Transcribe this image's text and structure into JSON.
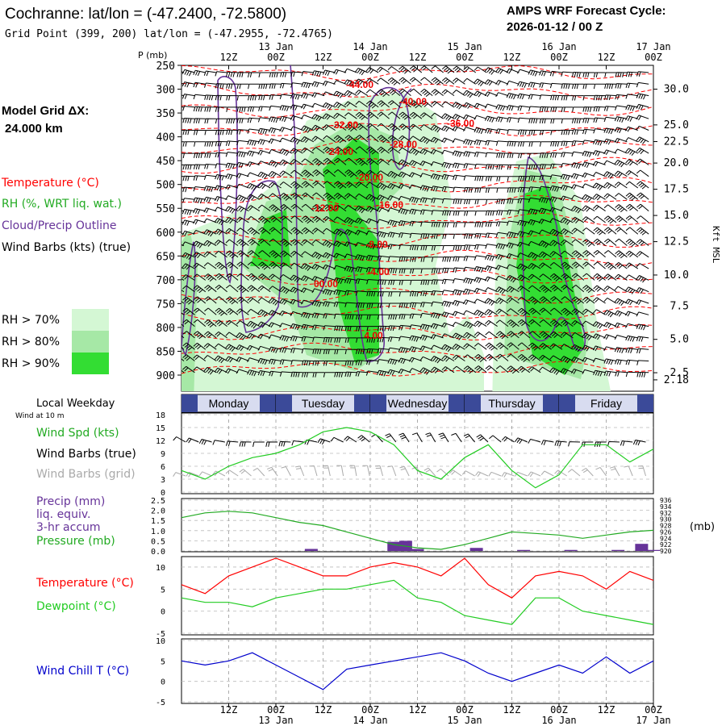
{
  "header": {
    "title": "Cochranne:  lat/lon = (-47.2400, -72.5800)",
    "grid_point": "Grid Point (399, 200) lat/lon = (-47.2955, -72.4765)",
    "forecast_label": "AMPS WRF Forecast Cycle:",
    "forecast_cycle": "2026-01-12 / 00  Z"
  },
  "colors": {
    "temperature": "#ff0000",
    "rh": "#22aa22",
    "cloud": "#663399",
    "wind": "#000000",
    "grid_barb": "#aaaaaa",
    "wind_chill": "#0000cc",
    "dewpoint": "#22cc22",
    "precip": "#663399"
  },
  "time_axis": {
    "top_hours": [
      "12Z",
      "00Z",
      "12Z",
      "00Z",
      "12Z",
      "00Z",
      "12Z",
      "00Z",
      "12Z",
      "00Z"
    ],
    "top_dates": [
      "13 Jan",
      "14 Jan",
      "15 Jan",
      "16 Jan",
      "17 Jan"
    ],
    "bottom_hours": [
      "12Z",
      "00Z",
      "12Z",
      "00Z",
      "12Z",
      "00Z",
      "12Z",
      "00Z",
      "12Z",
      "00Z"
    ],
    "bottom_dates": [
      "13 Jan",
      "14 Jan",
      "15 Jan",
      "16 Jan",
      "17 Jan"
    ]
  },
  "weekday_label": "Local Weekday",
  "wind_10m_label": "Wind at 10 m",
  "weekdays": [
    "Monday",
    "Tuesday",
    "Wednesday",
    "Thursday",
    "Friday"
  ],
  "pressure_axis": {
    "label": "P (mb)",
    "levels": [
      250,
      300,
      350,
      400,
      450,
      500,
      550,
      600,
      650,
      700,
      750,
      800,
      850,
      900
    ]
  },
  "height_axis": {
    "label": "Kft MSL",
    "ticks": [
      "30.0",
      "25.0",
      "22.5",
      "20.0",
      "17.5",
      "15.0",
      "12.5",
      "10.0",
      "7.5",
      "5.0",
      "2.5",
      "2.18"
    ]
  },
  "model_grid": {
    "label": "Model Grid ΔX:",
    "value": "24.000 km"
  },
  "legend": {
    "temperature": "Temperature (°C)",
    "rh": "RH (%, WRT liq. wat.)",
    "cloud": "Cloud/Precip Outline",
    "wind": "Wind Barbs (kts) (true)",
    "rh70": "RH > 70%",
    "rh80": "RH > 80%",
    "rh90": "RH > 90%",
    "rh70_color": "#d4f7d4",
    "rh80_color": "#a6e8a6",
    "rh90_color": "#33dd33"
  },
  "temp_labels": [
    "-44.00",
    "-40.00",
    "-36.00",
    "-32.00",
    "-28.00",
    "-24.00",
    "-20.00",
    "-16.00",
    "-12.00",
    "-8.00",
    "-4.00",
    "00.00",
    "4.00"
  ],
  "panel_labels": {
    "wind_spd": "Wind Spd (kts)",
    "wind_barbs_true": "Wind Barbs (true)",
    "wind_barbs_grid": "Wind Barbs (grid)",
    "precip1": "Precip (mm)",
    "precip2": "liq. equiv.",
    "precip3": "3-hr accum",
    "pressure": "Pressure (mb)",
    "pressure_unit": "(mb)",
    "temperature": "Temperature (°C)",
    "dewpoint": "Dewpoint (°C)",
    "wind_chill": "Wind Chill T (°C)"
  },
  "chart_data": [
    {
      "type": "line",
      "title": "Wind Spd (kts)",
      "x_unit": "forecast hour",
      "x": [
        0,
        6,
        12,
        18,
        24,
        30,
        36,
        42,
        48,
        54,
        60,
        66,
        72,
        78,
        84,
        90,
        96,
        102,
        108,
        114,
        120
      ],
      "values": [
        5,
        3,
        6,
        8,
        9,
        11,
        14,
        15,
        14,
        11,
        5,
        3,
        8,
        11,
        5,
        1,
        4,
        11,
        11,
        7,
        10
      ],
      "y_ticks": [
        0,
        3,
        6,
        9,
        12,
        15,
        18
      ],
      "ylim": [
        0,
        18
      ]
    },
    {
      "type": "line+bar",
      "title": "Precip (mm) liq. equiv. 3-hr accum / Pressure (mb)",
      "x": [
        0,
        6,
        12,
        18,
        24,
        30,
        36,
        42,
        48,
        54,
        60,
        66,
        72,
        78,
        84,
        90,
        96,
        102,
        108,
        114,
        120
      ],
      "pressure": [
        930.5,
        932,
        932.5,
        932,
        930.5,
        929,
        928,
        926,
        924,
        922,
        921,
        920.5,
        922,
        924,
        926,
        925.5,
        925,
        924,
        925,
        926,
        926.5
      ],
      "precip_bars": [
        {
          "hour": 33,
          "value": 0.1
        },
        {
          "hour": 54,
          "value": 0.45
        },
        {
          "hour": 57,
          "value": 0.5
        },
        {
          "hour": 60,
          "value": 0.1
        },
        {
          "hour": 75,
          "value": 0.15
        },
        {
          "hour": 87,
          "value": 0.05
        },
        {
          "hour": 99,
          "value": 0.05
        },
        {
          "hour": 111,
          "value": 0.05
        },
        {
          "hour": 117,
          "value": 0.35
        },
        {
          "hour": 120,
          "value": 0.05
        }
      ],
      "precip_ticks": [
        0.0,
        0.5,
        1.0,
        1.5,
        2.0,
        2.5
      ],
      "precip_ylim": [
        0,
        2.5
      ],
      "pressure_ticks": [
        920,
        922,
        924,
        926,
        928,
        930,
        932,
        934,
        936
      ],
      "pressure_ylim": [
        920,
        936
      ]
    },
    {
      "type": "line",
      "title": "Temperature / Dewpoint (°C)",
      "x": [
        0,
        6,
        12,
        18,
        24,
        30,
        36,
        42,
        48,
        54,
        60,
        66,
        72,
        78,
        84,
        90,
        96,
        102,
        108,
        114,
        120
      ],
      "series": [
        {
          "name": "Temperature",
          "values": [
            6,
            4,
            8,
            10,
            12,
            10,
            8,
            8,
            10,
            11,
            10,
            8,
            12,
            6,
            3,
            8,
            9,
            8,
            5,
            9,
            7
          ]
        },
        {
          "name": "Dewpoint",
          "values": [
            3,
            2,
            2,
            1,
            3,
            4,
            5,
            5,
            6,
            7,
            3,
            2,
            -1,
            -2,
            -3,
            3,
            3,
            0,
            -1,
            -2,
            -3
          ]
        }
      ],
      "y_ticks": [
        -5,
        0,
        5,
        10
      ],
      "ylim": [
        -5,
        12
      ]
    },
    {
      "type": "line",
      "title": "Wind Chill T (°C)",
      "x": [
        0,
        6,
        12,
        18,
        24,
        30,
        36,
        42,
        48,
        54,
        60,
        66,
        72,
        78,
        84,
        90,
        96,
        102,
        108,
        114,
        120
      ],
      "values": [
        5,
        4,
        5,
        7,
        4,
        1,
        -2,
        3,
        4,
        5,
        6,
        7,
        5,
        2,
        0,
        2,
        4,
        2,
        6,
        2,
        5
      ],
      "y_ticks": [
        -5,
        0,
        5,
        10
      ],
      "ylim": [
        -5,
        10
      ]
    }
  ]
}
